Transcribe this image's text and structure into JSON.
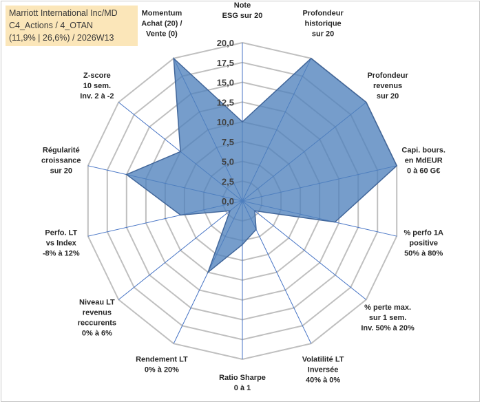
{
  "title_box": {
    "line1": "Marriott International Inc/MD",
    "line2": "C4_Actions / 4_OTAN",
    "line3": "(11,9% | 26,6%) / 2026W13"
  },
  "chart_data": {
    "type": "radar",
    "title": "Marriott International Inc/MD",
    "rmax": 20,
    "ticks": [
      "0,0",
      "2,5",
      "5,0",
      "7,5",
      "10,0",
      "12,5",
      "15,0",
      "17,5",
      "20,0"
    ],
    "tick_values": [
      0,
      2.5,
      5,
      7.5,
      10,
      12.5,
      15,
      17.5,
      20
    ],
    "categories": [
      [
        "Note",
        "ESG sur 20"
      ],
      [
        "Profondeur",
        "historique",
        "sur 20"
      ],
      [
        "Profondeur",
        "revenus",
        "sur 20"
      ],
      [
        "Capi. bours.",
        "en MdEUR",
        "0 à 60 G€"
      ],
      [
        "% perfo 1A",
        "positive",
        "50% à 80%"
      ],
      [
        "% perte max.",
        "sur 1 sem.",
        "Inv. 50% à 20%"
      ],
      [
        "Volatilité LT",
        "Inversée",
        "40% à 0%"
      ],
      [
        "Ratio Sharpe",
        "0 à 1"
      ],
      [
        "Rendement LT",
        "0% à 20%"
      ],
      [
        "Niveau LT",
        "revenus",
        "reccurents",
        "0% à 6%"
      ],
      [
        "Perfo. LT",
        "vs Index",
        "-8% à 12%"
      ],
      [
        "Régularité",
        "croissance",
        "sur 20"
      ],
      [
        "Z-score",
        "10 sem.",
        "Inv. 2 à -2"
      ],
      [
        "Momentum",
        "Achat (20) /",
        "Vente (0)"
      ]
    ],
    "series": [
      {
        "name": "Marriott International Inc/MD",
        "values": [
          10,
          20,
          20,
          20,
          12,
          2,
          4,
          5.5,
          10,
          2,
          8,
          15,
          10,
          20
        ]
      }
    ],
    "colors": {
      "fill": "#4f81bd",
      "fill_opacity": 0.78,
      "stroke": "#41669a",
      "spoke": "#4472c4",
      "grid": "#bfbfbf"
    }
  }
}
